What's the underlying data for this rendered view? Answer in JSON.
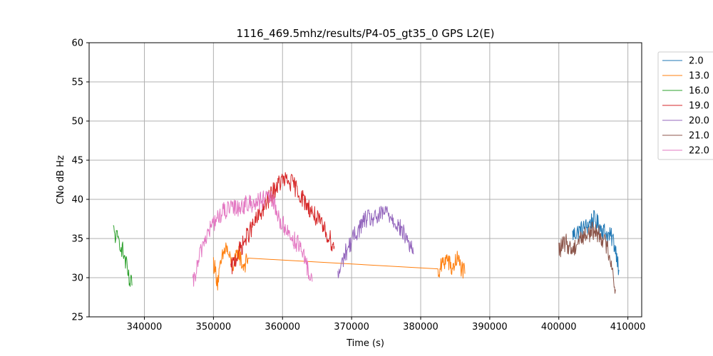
{
  "chart_data": {
    "type": "line",
    "title": "1116_469.5mhz/results/P4-05_gt35_0 GPS L2(E)",
    "xlabel": "Time (s)",
    "ylabel": "CNo dB Hz",
    "xlim": [
      332000,
      412000
    ],
    "ylim": [
      25,
      60
    ],
    "x_ticks": [
      340000,
      350000,
      360000,
      370000,
      380000,
      390000,
      400000,
      410000
    ],
    "x_tick_labels": [
      "340000",
      "350000",
      "360000",
      "370000",
      "380000",
      "390000",
      "400000",
      "410000"
    ],
    "y_ticks": [
      25,
      30,
      35,
      40,
      45,
      50,
      55,
      60
    ],
    "y_tick_labels": [
      "25",
      "30",
      "35",
      "40",
      "45",
      "50",
      "55",
      "60"
    ],
    "grid": true,
    "legend_position": "outside-top-right",
    "series": [
      {
        "name": "2.0",
        "color": "#1f77b4",
        "x": [
          402000,
          403000,
          404000,
          405000,
          406000,
          407000,
          407800,
          408400,
          408700
        ],
        "y": [
          35.5,
          36.0,
          36.5,
          37.5,
          36.5,
          35.5,
          35.0,
          33.0,
          31.0
        ]
      },
      {
        "name": "13.0",
        "color": "#ff7f0e",
        "x": [
          350000,
          350600,
          351300,
          351800,
          352500,
          353000,
          353600,
          354200,
          354800,
          355000,
          382500,
          383000,
          383800,
          384500,
          385300,
          386000,
          386400
        ],
        "y": [
          32.0,
          29.5,
          32.5,
          34.0,
          32.0,
          31.5,
          33.5,
          31.5,
          32.0,
          32.5,
          30.3,
          31.5,
          32.5,
          31.0,
          32.5,
          31.0,
          30.5
        ]
      },
      {
        "name": "16.0",
        "color": "#2ca02c",
        "x": [
          335500,
          336000,
          336500,
          337000,
          337400,
          337800,
          338200
        ],
        "y": [
          36.0,
          35.0,
          34.5,
          33.0,
          31.5,
          29.5,
          29.0
        ]
      },
      {
        "name": "19.0",
        "color": "#d62728",
        "x": [
          352500,
          353500,
          355000,
          357000,
          359000,
          360000,
          361500,
          363000,
          365000,
          366500,
          367500
        ],
        "y": [
          31.0,
          33.0,
          35.5,
          38.5,
          41.5,
          42.5,
          42.0,
          40.0,
          37.5,
          35.5,
          34.0
        ]
      },
      {
        "name": "20.0",
        "color": "#9467bd",
        "x": [
          368000,
          369000,
          370500,
          372000,
          373500,
          375000,
          376500,
          378000,
          379000
        ],
        "y": [
          30.0,
          33.0,
          35.5,
          37.5,
          37.5,
          38.5,
          37.0,
          35.0,
          33.0
        ]
      },
      {
        "name": "21.0",
        "color": "#8c564b",
        "x": [
          400000,
          401000,
          402000,
          403000,
          404000,
          405000,
          406000,
          407000,
          407600,
          408200
        ],
        "y": [
          33.5,
          34.5,
          33.5,
          35.0,
          35.5,
          36.0,
          35.5,
          34.0,
          32.0,
          28.5
        ]
      },
      {
        "name": "22.0",
        "color": "#e377c2",
        "x": [
          347000,
          348500,
          350000,
          351500,
          353500,
          355500,
          357500,
          358500,
          359500,
          361000,
          362500,
          363500,
          364300
        ],
        "y": [
          29.0,
          34.5,
          37.0,
          38.5,
          39.0,
          39.5,
          40.0,
          40.0,
          37.5,
          35.5,
          34.0,
          31.5,
          29.5
        ]
      }
    ]
  }
}
